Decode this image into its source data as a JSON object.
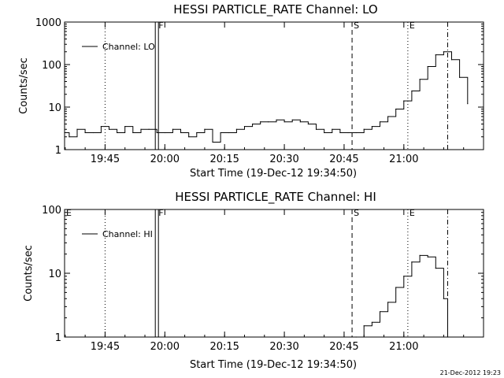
{
  "footer_timestamp": "21-Dec-2012 19:23",
  "chart_data": [
    {
      "type": "line",
      "title": "HESSI PARTICLE_RATE Channel: LO",
      "xlabel": "Start Time (19-Dec-12 19:34:50)",
      "ylabel": "Counts/sec",
      "x_unit": "minutes",
      "xlim": [
        "19:34:50",
        "21:20:00"
      ],
      "ylim": [
        1,
        1000
      ],
      "y_scale": "log",
      "x_ticks": [
        "19:45",
        "20:00",
        "20:15",
        "20:30",
        "20:45",
        "21:00"
      ],
      "y_ticks": [
        "1",
        "10",
        "100",
        "1000"
      ],
      "legend": {
        "label": "Channel: LO",
        "placement": "top-left"
      },
      "series": [
        {
          "name": "Channel: LO",
          "x": [
            "19:34:50",
            "19:36:00",
            "19:38:00",
            "19:40:00",
            "19:42:00",
            "19:44:00",
            "19:46:00",
            "19:48:00",
            "19:50:00",
            "19:52:00",
            "19:54:00",
            "19:56:00",
            "19:58:00",
            "20:00:00",
            "20:02:00",
            "20:04:00",
            "20:06:00",
            "20:08:00",
            "20:10:00",
            "20:12:00",
            "20:14:00",
            "20:16:00",
            "20:18:00",
            "20:20:00",
            "20:22:00",
            "20:24:00",
            "20:26:00",
            "20:28:00",
            "20:30:00",
            "20:32:00",
            "20:34:00",
            "20:36:00",
            "20:38:00",
            "20:40:00",
            "20:42:00",
            "20:44:00",
            "20:46:00",
            "20:48:00",
            "20:50:00",
            "20:52:00",
            "20:54:00",
            "20:56:00",
            "20:58:00",
            "21:00:00",
            "21:02:00",
            "21:04:00",
            "21:06:00",
            "21:08:00",
            "21:10:00",
            "21:12:00",
            "21:14:00",
            "21:16:00"
          ],
          "values": [
            2.5,
            2.0,
            3.0,
            2.5,
            2.5,
            3.5,
            3.0,
            2.5,
            3.5,
            2.5,
            3.0,
            3.0,
            2.5,
            2.5,
            3.0,
            2.5,
            2.0,
            2.5,
            3.0,
            1.5,
            2.5,
            2.5,
            3.0,
            3.5,
            4.0,
            4.5,
            4.5,
            5.0,
            4.5,
            5.0,
            4.5,
            4.0,
            3.0,
            2.5,
            3.0,
            2.5,
            2.5,
            2.5,
            3.0,
            3.5,
            4.5,
            6.0,
            9.0,
            14.0,
            24.0,
            45.0,
            90.0,
            170.0,
            200.0,
            130.0,
            50.0,
            12.0
          ]
        }
      ],
      "markers": [
        {
          "label": "",
          "x": "19:45:00",
          "style": "dotted"
        },
        {
          "label": "F",
          "x": "19:58:00",
          "style": "double-solid"
        },
        {
          "label": "S",
          "x": "20:47:00",
          "style": "dashed"
        },
        {
          "label": "E",
          "x": "21:01:00",
          "style": "dotted"
        },
        {
          "label": "",
          "x": "21:11:00",
          "style": "dash-dot"
        }
      ]
    },
    {
      "type": "line",
      "title": "HESSI PARTICLE_RATE Channel: HI",
      "xlabel": "Start Time (19-Dec-12 19:34:50)",
      "ylabel": "Counts/sec",
      "x_unit": "minutes",
      "xlim": [
        "19:34:50",
        "21:20:00"
      ],
      "ylim": [
        1,
        100
      ],
      "y_scale": "log",
      "x_ticks": [
        "19:45",
        "20:00",
        "20:15",
        "20:30",
        "20:45",
        "21:00"
      ],
      "y_ticks": [
        "1",
        "10",
        "100"
      ],
      "legend": {
        "label": "Channel: HI",
        "placement": "top-left"
      },
      "series": [
        {
          "name": "Channel: HI",
          "x": [
            "20:48:00",
            "20:50:00",
            "20:52:00",
            "20:54:00",
            "20:56:00",
            "20:58:00",
            "21:00:00",
            "21:02:00",
            "21:04:00",
            "21:06:00",
            "21:08:00",
            "21:10:00",
            "21:11:00"
          ],
          "values": [
            1.0,
            1.5,
            1.7,
            2.5,
            3.5,
            6.0,
            9.0,
            15.0,
            19.0,
            18.0,
            12.0,
            4.0,
            1.0
          ]
        }
      ],
      "markers": [
        {
          "label": "E",
          "x": "19:34:50",
          "style": "none"
        },
        {
          "label": "",
          "x": "19:45:00",
          "style": "dotted"
        },
        {
          "label": "F",
          "x": "19:58:00",
          "style": "double-solid"
        },
        {
          "label": "S",
          "x": "20:47:00",
          "style": "dashed"
        },
        {
          "label": "E",
          "x": "21:01:00",
          "style": "dotted"
        },
        {
          "label": "",
          "x": "21:11:00",
          "style": "dash-dot"
        }
      ]
    }
  ]
}
